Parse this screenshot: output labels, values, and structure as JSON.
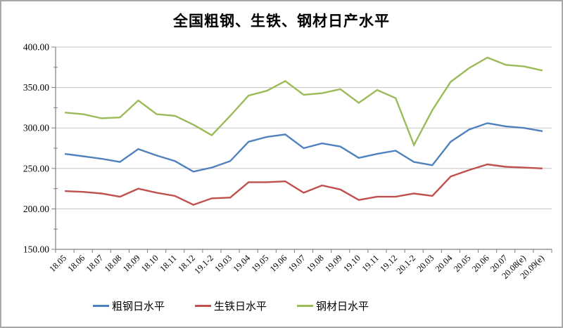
{
  "frame": {
    "background": "#ffffff",
    "border_color": "#a8a8a8"
  },
  "chart_data": {
    "type": "line",
    "title": "全国粗钢、生铁、钢材日产水平",
    "categories": [
      "18.05",
      "18.06",
      "18.07",
      "18.08",
      "18.09",
      "18.10",
      "18.11",
      "18.12",
      "19.1-2",
      "19.03",
      "19.04",
      "19.05",
      "19.06",
      "19.07",
      "19.08",
      "19.09",
      "19.10",
      "19.11",
      "19.12",
      "20.1-2",
      "20.03",
      "20.04",
      "20.05",
      "20.06",
      "20.07",
      "20.08(e)",
      "20.09(e)"
    ],
    "series": [
      {
        "id": "crude-steel",
        "name": "粗钢日水平",
        "color": "#4F81BD",
        "values": [
          268,
          265,
          262,
          258,
          274,
          266,
          259,
          246,
          251,
          259,
          283,
          289,
          292,
          275,
          281,
          277,
          263,
          268,
          272,
          258,
          254,
          283,
          298,
          306,
          302,
          300,
          296
        ]
      },
      {
        "id": "pig-iron",
        "name": "生铁日水平",
        "color": "#C0504D",
        "values": [
          222,
          221,
          219,
          215,
          225,
          220,
          216,
          205,
          213,
          214,
          233,
          233,
          234,
          220,
          229,
          224,
          211,
          215,
          215,
          219,
          216,
          240,
          248,
          255,
          252,
          251,
          250
        ]
      },
      {
        "id": "steel-products",
        "name": "钢材日水平",
        "color": "#9BBB59",
        "values": [
          319,
          317,
          312,
          313,
          334,
          317,
          315,
          304,
          291,
          315,
          340,
          346,
          358,
          341,
          343,
          348,
          331,
          347,
          337,
          279,
          322,
          357,
          374,
          387,
          378,
          376,
          371
        ]
      }
    ],
    "y_axis": {
      "min": 150,
      "max": 400,
      "major_step": 50,
      "minor_step": 25,
      "tick_labels": [
        "400.00",
        "350.00",
        "300.00",
        "250.00",
        "200.00",
        "150.00"
      ]
    },
    "grid": true,
    "gridline_color": "#c4c4c4",
    "axis_color": "#808080",
    "legend_position": "bottom"
  }
}
